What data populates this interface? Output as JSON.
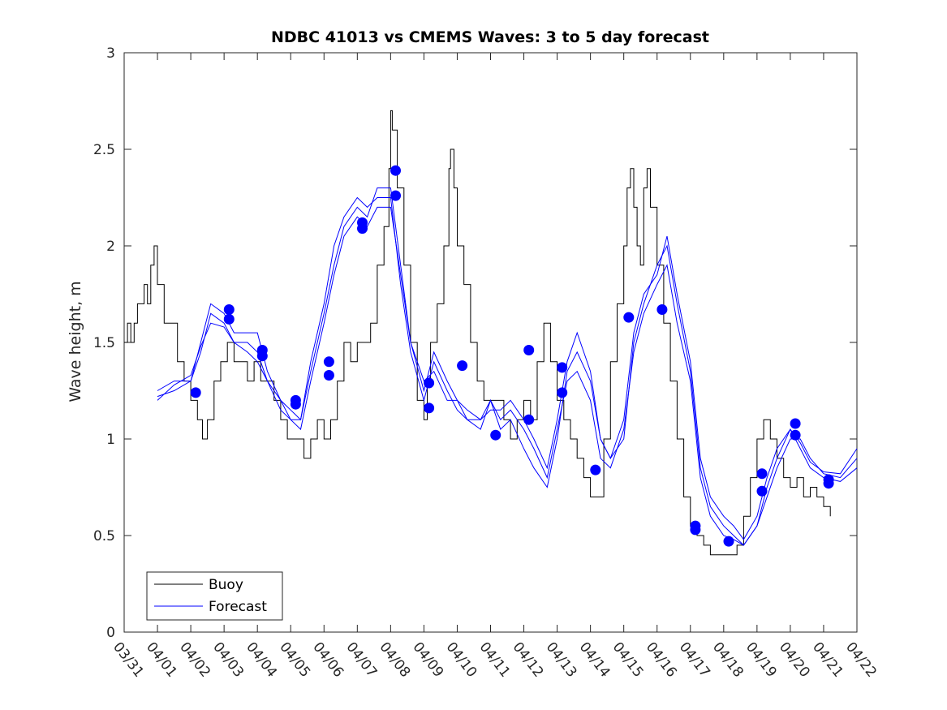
{
  "chart_data": {
    "type": "line",
    "title": "NDBC 41013 vs CMEMS Waves: 3 to 5 day forecast",
    "xlabel": "",
    "ylabel": "Wave height, m",
    "xlim": [
      0,
      22
    ],
    "ylim": [
      0,
      3
    ],
    "x_tick_labels": [
      "03/31",
      "04/01",
      "04/02",
      "04/03",
      "04/04",
      "04/05",
      "04/06",
      "04/07",
      "04/08",
      "04/09",
      "04/10",
      "04/11",
      "04/12",
      "04/13",
      "04/14",
      "04/15",
      "04/16",
      "04/17",
      "04/18",
      "04/19",
      "04/20",
      "04/21",
      "04/22"
    ],
    "y_ticks": [
      0,
      0.5,
      1,
      1.5,
      2,
      2.5,
      3
    ],
    "y_tick_labels": [
      "0",
      "0.5",
      "1",
      "1.5",
      "2",
      "2.5",
      "3"
    ],
    "legend": {
      "position": "bottom-left",
      "entries": [
        "Buoy",
        "Forecast"
      ]
    },
    "colors": {
      "buoy": "#000000",
      "forecast": "#0000ff"
    },
    "buoy": {
      "x": [
        0,
        0.1,
        0.2,
        0.3,
        0.4,
        0.5,
        0.6,
        0.7,
        0.8,
        0.9,
        1.0,
        1.2,
        1.4,
        1.6,
        1.8,
        2.0,
        2.2,
        2.35,
        2.5,
        2.7,
        2.9,
        3.0,
        3.1,
        3.3,
        3.5,
        3.7,
        3.9,
        4.1,
        4.3,
        4.5,
        4.7,
        4.9,
        5.0,
        5.2,
        5.4,
        5.6,
        5.8,
        6.0,
        6.2,
        6.4,
        6.6,
        6.8,
        7.0,
        7.2,
        7.4,
        7.6,
        7.8,
        7.95,
        8.0,
        8.05,
        8.2,
        8.4,
        8.6,
        8.8,
        9.0,
        9.1,
        9.2,
        9.4,
        9.6,
        9.75,
        9.8,
        9.9,
        10.0,
        10.2,
        10.4,
        10.6,
        10.8,
        11.0,
        11.2,
        11.4,
        11.6,
        11.8,
        12.0,
        12.2,
        12.4,
        12.6,
        12.8,
        13.0,
        13.2,
        13.4,
        13.6,
        13.8,
        14.0,
        14.2,
        14.4,
        14.6,
        14.8,
        15.0,
        15.1,
        15.2,
        15.3,
        15.4,
        15.5,
        15.6,
        15.7,
        15.8,
        16.0,
        16.2,
        16.4,
        16.6,
        16.8,
        17.0,
        17.2,
        17.4,
        17.6,
        17.8,
        18.0,
        18.2,
        18.4,
        18.6,
        18.8,
        19.0,
        19.2,
        19.4,
        19.6,
        19.8,
        20.0,
        20.2,
        20.4,
        20.6,
        20.8,
        21.0,
        21.2
      ],
      "y": [
        1.5,
        1.6,
        1.5,
        1.6,
        1.7,
        1.7,
        1.8,
        1.7,
        1.9,
        2.0,
        1.8,
        1.6,
        1.6,
        1.4,
        1.3,
        1.2,
        1.1,
        1.0,
        1.1,
        1.3,
        1.4,
        1.4,
        1.5,
        1.4,
        1.4,
        1.3,
        1.4,
        1.3,
        1.3,
        1.2,
        1.1,
        1.0,
        1.0,
        1.0,
        0.9,
        1.0,
        1.1,
        1.0,
        1.1,
        1.3,
        1.5,
        1.4,
        1.5,
        1.5,
        1.6,
        1.9,
        2.1,
        2.4,
        2.7,
        2.6,
        2.3,
        1.9,
        1.5,
        1.2,
        1.1,
        1.3,
        1.5,
        1.7,
        2.0,
        2.4,
        2.5,
        2.3,
        2.0,
        1.8,
        1.5,
        1.3,
        1.2,
        1.2,
        1.2,
        1.1,
        1.0,
        1.1,
        1.2,
        1.1,
        1.4,
        1.6,
        1.4,
        1.2,
        1.1,
        1.0,
        0.9,
        0.8,
        0.7,
        0.7,
        1.0,
        1.4,
        1.7,
        2.0,
        2.3,
        2.4,
        2.2,
        2.0,
        1.9,
        2.3,
        2.4,
        2.2,
        1.9,
        1.6,
        1.3,
        1.0,
        0.7,
        0.55,
        0.5,
        0.45,
        0.4,
        0.4,
        0.4,
        0.4,
        0.45,
        0.6,
        0.8,
        1.0,
        1.1,
        1.0,
        0.9,
        0.8,
        0.75,
        0.8,
        0.7,
        0.75,
        0.7,
        0.65,
        0.6
      ]
    },
    "forecast": {
      "x": [
        1.0,
        1.5,
        2.0,
        2.3,
        2.6,
        3.0,
        3.3,
        3.7,
        4.0,
        4.3,
        4.7,
        5.0,
        5.3,
        5.6,
        6.0,
        6.3,
        6.6,
        7.0,
        7.3,
        7.6,
        8.0,
        8.3,
        8.6,
        9.0,
        9.3,
        9.7,
        10.0,
        10.3,
        10.7,
        11.0,
        11.3,
        11.6,
        12.0,
        12.3,
        12.7,
        13.0,
        13.3,
        13.6,
        14.0,
        14.3,
        14.6,
        15.0,
        15.3,
        15.6,
        16.0,
        16.3,
        16.6,
        17.0,
        17.3,
        17.6,
        18.0,
        18.3,
        18.6,
        19.0,
        19.3,
        19.6,
        20.0,
        20.3,
        20.6,
        21.0,
        21.5,
        22.0
      ],
      "series": [
        {
          "name": "Forecast 1",
          "y": [
            1.25,
            1.3,
            1.3,
            1.45,
            1.65,
            1.6,
            1.5,
            1.5,
            1.45,
            1.3,
            1.2,
            1.1,
            1.1,
            1.35,
            1.65,
            1.9,
            2.1,
            2.2,
            2.15,
            2.3,
            2.3,
            1.9,
            1.5,
            1.3,
            1.35,
            1.2,
            1.2,
            1.1,
            1.1,
            1.2,
            1.1,
            1.15,
            1.05,
            0.95,
            0.8,
            1.05,
            1.3,
            1.35,
            1.2,
            0.9,
            0.85,
            1.05,
            1.45,
            1.65,
            1.8,
            1.9,
            1.6,
            1.3,
            0.8,
            0.6,
            0.5,
            0.48,
            0.45,
            0.55,
            0.75,
            0.9,
            1.05,
            0.95,
            0.85,
            0.8,
            0.78,
            0.85
          ]
        },
        {
          "name": "Forecast 2",
          "y": [
            1.22,
            1.25,
            1.3,
            1.5,
            1.7,
            1.65,
            1.55,
            1.55,
            1.55,
            1.35,
            1.2,
            1.15,
            1.1,
            1.4,
            1.7,
            2.0,
            2.15,
            2.25,
            2.2,
            2.25,
            2.25,
            1.8,
            1.45,
            1.2,
            1.4,
            1.25,
            1.15,
            1.1,
            1.05,
            1.2,
            1.05,
            1.1,
            0.95,
            0.85,
            0.75,
            1.0,
            1.35,
            1.45,
            1.3,
            1.0,
            0.9,
            1.0,
            1.5,
            1.7,
            1.9,
            2.0,
            1.7,
            1.35,
            0.85,
            0.65,
            0.55,
            0.5,
            0.45,
            0.55,
            0.7,
            0.85,
            1.0,
            1.0,
            0.9,
            0.82,
            0.8,
            0.9
          ]
        },
        {
          "name": "Forecast 3",
          "y": [
            1.2,
            1.28,
            1.33,
            1.48,
            1.6,
            1.58,
            1.5,
            1.45,
            1.4,
            1.3,
            1.15,
            1.1,
            1.05,
            1.3,
            1.6,
            1.85,
            2.05,
            2.15,
            2.1,
            2.2,
            2.2,
            1.85,
            1.5,
            1.25,
            1.45,
            1.3,
            1.2,
            1.15,
            1.1,
            1.15,
            1.15,
            1.2,
            1.1,
            1.0,
            0.85,
            1.1,
            1.4,
            1.55,
            1.35,
            1.0,
            0.9,
            1.1,
            1.55,
            1.75,
            1.85,
            2.05,
            1.75,
            1.4,
            0.9,
            0.7,
            0.6,
            0.55,
            0.48,
            0.6,
            0.8,
            0.95,
            1.05,
            0.98,
            0.88,
            0.83,
            0.82,
            0.95
          ]
        }
      ],
      "markers": {
        "x": [
          2.15,
          3.15,
          3.15,
          4.15,
          4.15,
          5.15,
          5.15,
          6.15,
          6.15,
          7.15,
          7.15,
          8.15,
          8.15,
          9.15,
          9.15,
          10.15,
          11.15,
          12.15,
          12.15,
          13.15,
          13.15,
          14.15,
          15.15,
          16.15,
          17.15,
          17.15,
          18.15,
          19.15,
          19.15,
          20.15,
          20.15,
          21.15,
          21.15
        ],
        "y": [
          1.24,
          1.67,
          1.62,
          1.46,
          1.43,
          1.2,
          1.18,
          1.4,
          1.33,
          2.12,
          2.09,
          2.39,
          2.26,
          1.29,
          1.16,
          1.38,
          1.02,
          1.46,
          1.1,
          1.37,
          1.24,
          0.84,
          1.63,
          1.67,
          0.55,
          0.53,
          0.47,
          0.82,
          0.73,
          1.08,
          1.02,
          0.79,
          0.77
        ]
      }
    }
  }
}
